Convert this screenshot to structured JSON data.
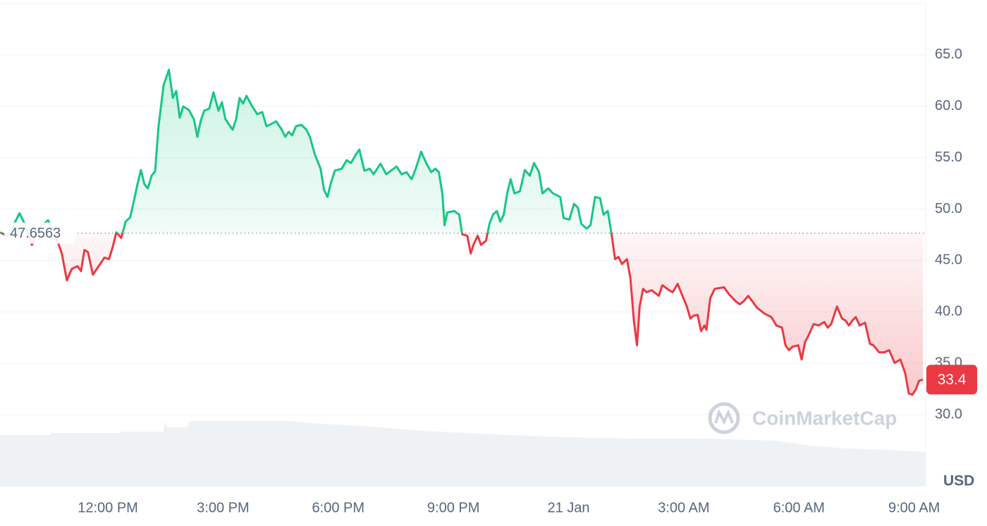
{
  "chart_data": {
    "type": "line",
    "color": "#16c784",
    "color_below": "#ea3943",
    "baseline": 47.6563,
    "unit": "USD",
    "watermark": "CoinMarketCap",
    "grid": true,
    "xlim": [
      9.19,
      33.3
    ],
    "ylim": [
      23,
      70
    ],
    "xticks": [
      {
        "value": 12,
        "label": "12:00 PM"
      },
      {
        "value": 15,
        "label": "3:00 PM"
      },
      {
        "value": 18,
        "label": "6:00 PM"
      },
      {
        "value": 21,
        "label": "9:00 PM"
      },
      {
        "value": 24,
        "label": "21 Jan"
      },
      {
        "value": 27,
        "label": "3:00 AM"
      },
      {
        "value": 30,
        "label": "6:00 AM"
      },
      {
        "value": 33,
        "label": "9:00 AM"
      }
    ],
    "yticks": [
      {
        "value": 30,
        "label": "30.0"
      },
      {
        "value": 35,
        "label": "35.0"
      },
      {
        "value": 40,
        "label": "40.0"
      },
      {
        "value": 45,
        "label": "45.0"
      },
      {
        "value": 50,
        "label": "50.0"
      },
      {
        "value": 55,
        "label": "55.0"
      },
      {
        "value": 60,
        "label": "60.0"
      },
      {
        "value": 65,
        "label": "65.0"
      }
    ],
    "x": [
      9.19,
      9.37,
      9.56,
      9.7,
      9.83,
      10.02,
      10.2,
      10.44,
      10.62,
      10.8,
      10.93,
      11.06,
      11.21,
      11.3,
      11.39,
      11.48,
      11.61,
      11.76,
      11.91,
      12.03,
      12.13,
      12.22,
      12.35,
      12.46,
      12.58,
      12.68,
      12.77,
      12.86,
      12.95,
      13.04,
      13.14,
      13.23,
      13.32,
      13.45,
      13.59,
      13.69,
      13.78,
      13.87,
      13.96,
      14.11,
      14.24,
      14.33,
      14.42,
      14.51,
      14.64,
      14.75,
      14.88,
      14.97,
      15.06,
      15.25,
      15.34,
      15.43,
      15.52,
      15.61,
      15.74,
      15.89,
      16.02,
      16.13,
      16.25,
      16.38,
      16.53,
      16.62,
      16.71,
      16.8,
      16.9,
      17.04,
      17.17,
      17.26,
      17.39,
      17.54,
      17.63,
      17.72,
      17.81,
      17.91,
      18.09,
      18.22,
      18.33,
      18.46,
      18.55,
      18.68,
      18.82,
      18.92,
      19.1,
      19.25,
      19.37,
      19.52,
      19.65,
      19.78,
      19.91,
      20.02,
      20.16,
      20.29,
      20.42,
      20.53,
      20.62,
      20.71,
      20.77,
      20.84,
      21.02,
      21.15,
      21.23,
      21.36,
      21.45,
      21.52,
      21.63,
      21.72,
      21.85,
      21.94,
      22.03,
      22.13,
      22.22,
      22.31,
      22.4,
      22.49,
      22.59,
      22.73,
      22.86,
      22.99,
      23.1,
      23.23,
      23.32,
      23.47,
      23.59,
      23.78,
      23.87,
      24.02,
      24.14,
      24.24,
      24.33,
      24.47,
      24.57,
      24.69,
      24.82,
      24.91,
      25.02,
      25.12,
      25.21,
      25.3,
      25.39,
      25.52,
      25.61,
      25.7,
      25.78,
      25.85,
      25.94,
      26.03,
      26.16,
      26.35,
      26.44,
      26.62,
      26.71,
      26.84,
      26.95,
      27.08,
      27.17,
      27.26,
      27.36,
      27.45,
      27.54,
      27.59,
      27.69,
      27.81,
      28.05,
      28.18,
      28.36,
      28.46,
      28.55,
      28.68,
      28.79,
      28.91,
      29.1,
      29.28,
      29.41,
      29.56,
      29.65,
      29.74,
      29.83,
      29.98,
      30.07,
      30.16,
      30.26,
      30.38,
      30.51,
      30.66,
      30.75,
      30.84,
      30.99,
      31.12,
      31.21,
      31.3,
      31.39,
      31.48,
      31.58,
      31.72,
      31.85,
      31.94,
      32.09,
      32.22,
      32.35,
      32.49,
      32.64,
      32.77,
      32.86,
      32.95,
      33.04,
      33.13,
      33.23
    ],
    "values": [
      47.74,
      47.4,
      48.57,
      49.6,
      48.57,
      46.51,
      48.09,
      48.91,
      47.61,
      45.68,
      43.07,
      44.17,
      44.44,
      43.96,
      46.02,
      45.82,
      43.62,
      44.44,
      45.27,
      45.13,
      46.37,
      47.74,
      47.19,
      48.78,
      49.19,
      50.84,
      52.42,
      53.8,
      52.42,
      52.01,
      53.25,
      53.66,
      58.06,
      62.05,
      63.56,
      60.81,
      61.5,
      58.89,
      59.99,
      59.64,
      58.75,
      57.03,
      58.61,
      59.57,
      59.78,
      61.36,
      59.57,
      60.4,
      58.75,
      57.72,
      58.75,
      60.81,
      60.26,
      61.02,
      60.12,
      59.23,
      59.44,
      58.06,
      58.27,
      58.54,
      57.72,
      57.03,
      57.51,
      57.17,
      58.06,
      58.2,
      57.72,
      57.03,
      55.31,
      53.93,
      51.87,
      51.18,
      52.56,
      53.73,
      53.93,
      54.76,
      54.48,
      55.31,
      55.79,
      53.73,
      53.93,
      53.38,
      54.42,
      53.38,
      53.73,
      54.14,
      53.38,
      53.59,
      52.9,
      53.93,
      55.58,
      54.48,
      53.59,
      53.93,
      53.59,
      51.53,
      48.43,
      49.67,
      49.81,
      49.46,
      47.54,
      47.4,
      45.68,
      46.51,
      47.4,
      46.51,
      46.92,
      48.57,
      49.46,
      49.81,
      48.78,
      49.46,
      51.53,
      52.9,
      51.53,
      51.73,
      53.8,
      53.25,
      54.48,
      53.59,
      51.53,
      52.01,
      51.53,
      51.18,
      49.12,
      48.98,
      50.5,
      50.15,
      48.57,
      48.09,
      48.43,
      51.18,
      51.05,
      49.46,
      49.81,
      47.54,
      45.13,
      45.34,
      44.65,
      45.13,
      43.27,
      39.15,
      36.74,
      40.52,
      42.24,
      41.9,
      42.1,
      41.55,
      42.59,
      42.1,
      41.9,
      42.72,
      41.69,
      40.52,
      39.35,
      39.63,
      39.7,
      38.12,
      38.67,
      38.25,
      41.35,
      42.24,
      42.38,
      41.69,
      41.0,
      40.73,
      41.0,
      41.55,
      41.0,
      40.39,
      39.83,
      39.49,
      38.67,
      38.46,
      36.74,
      36.26,
      36.6,
      36.74,
      35.36,
      37.08,
      37.77,
      38.8,
      38.67,
      39.01,
      38.46,
      38.8,
      40.52,
      39.35,
      39.15,
      38.67,
      39.15,
      39.49,
      38.67,
      38.94,
      36.88,
      36.74,
      36.05,
      36.05,
      36.26,
      35.02,
      35.36,
      33.99,
      32.06,
      31.93,
      32.41,
      33.3,
      33.4
    ]
  }
}
